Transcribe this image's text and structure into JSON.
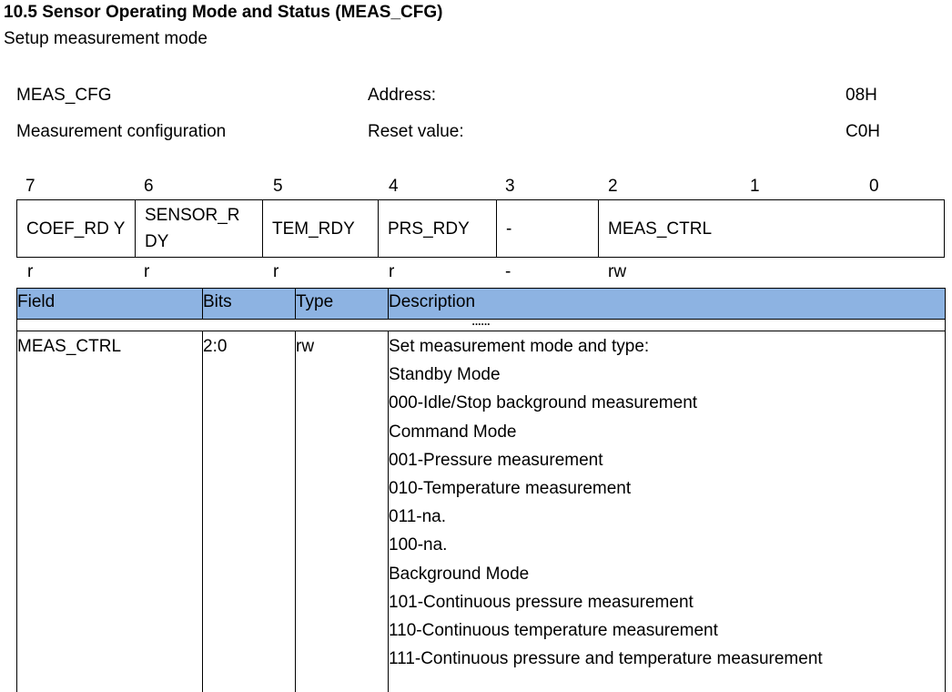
{
  "section": {
    "title": "10.5 Sensor Operating Mode and Status (MEAS_CFG)",
    "subtitle": "Setup measurement mode"
  },
  "register": {
    "name": "MEAS_CFG",
    "description": "Measurement configuration",
    "address_label": "Address:",
    "address": "08H",
    "reset_label": "Reset value:",
    "reset": "C0H"
  },
  "bits": [
    "7",
    "6",
    "5",
    "4",
    "3",
    "2",
    "1",
    "0"
  ],
  "fields": [
    "COEF_RD Y",
    "SENSOR_R DY",
    "TEM_RDY",
    "PRS_RDY",
    "-",
    "MEAS_CTRL"
  ],
  "access": [
    "r",
    "r",
    "r",
    "r",
    "-",
    "rw"
  ],
  "table": {
    "headers": [
      "Field",
      "Bits",
      "Type",
      "Description"
    ],
    "ellipsis": "......",
    "row": {
      "field": "MEAS_CTRL",
      "bits": "2:0",
      "type": "rw",
      "description": [
        "Set measurement mode and type:",
        "Standby Mode",
        "000-Idle/Stop background measurement",
        "Command Mode",
        "001-Pressure measurement",
        "010-Temperature measurement",
        "011-na.",
        "100-na.",
        "Background Mode",
        "101-Continuous pressure measurement",
        "110-Continuous temperature measurement",
        "111-Continuous pressure and temperature measurement"
      ]
    }
  },
  "colors": {
    "header_bg": "#8db3e2"
  }
}
